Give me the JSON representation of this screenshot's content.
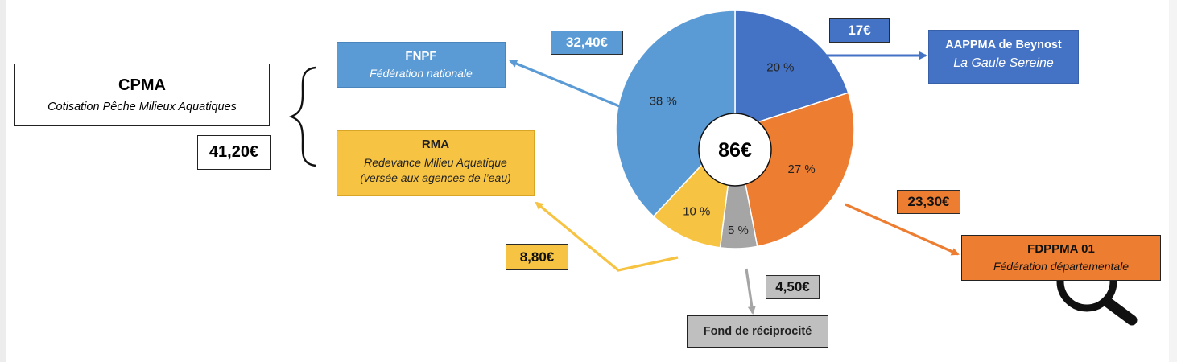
{
  "chart_data": {
    "type": "pie",
    "center_label": "86€",
    "slices": [
      {
        "key": "aappma",
        "label": "20 %",
        "value": 20,
        "amount": "17€",
        "color": "#4472c4"
      },
      {
        "key": "fdppma",
        "label": "27 %",
        "value": 27,
        "amount": "23,30€",
        "color": "#ed7d31"
      },
      {
        "key": "fond",
        "label": "5 %",
        "value": 5,
        "amount": "4,50€",
        "color": "#a5a5a5"
      },
      {
        "key": "rma",
        "label": "10 %",
        "value": 10,
        "amount": "8,80€",
        "color": "#f6c343"
      },
      {
        "key": "fnpf",
        "label": "38 %",
        "value": 38,
        "amount": "32,40€",
        "color": "#5b9bd5"
      }
    ]
  },
  "cpma": {
    "title": "CPMA",
    "subtitle": "Cotisation Pêche Milieux Aquatiques",
    "amount": "41,20€"
  },
  "fnpf": {
    "title": "FNPF",
    "subtitle": "Fédération nationale",
    "amount": "32,40€"
  },
  "rma": {
    "title": "RMA",
    "subtitle": "Redevance Milieu Aquatique",
    "subtitle2": "(versée aux agences de l’eau)",
    "amount": "8,80€"
  },
  "aappma": {
    "title": "AAPPMA de Beynost",
    "subtitle": "La Gaule Sereine",
    "amount": "17€"
  },
  "fdppma": {
    "title": "FDPPMA 01",
    "subtitle": "Fédération départementale",
    "amount": "23,30€"
  },
  "fond": {
    "title": "Fond de réciprocité",
    "amount": "4,50€"
  },
  "icons": {
    "zoom": "magnifier-icon"
  }
}
